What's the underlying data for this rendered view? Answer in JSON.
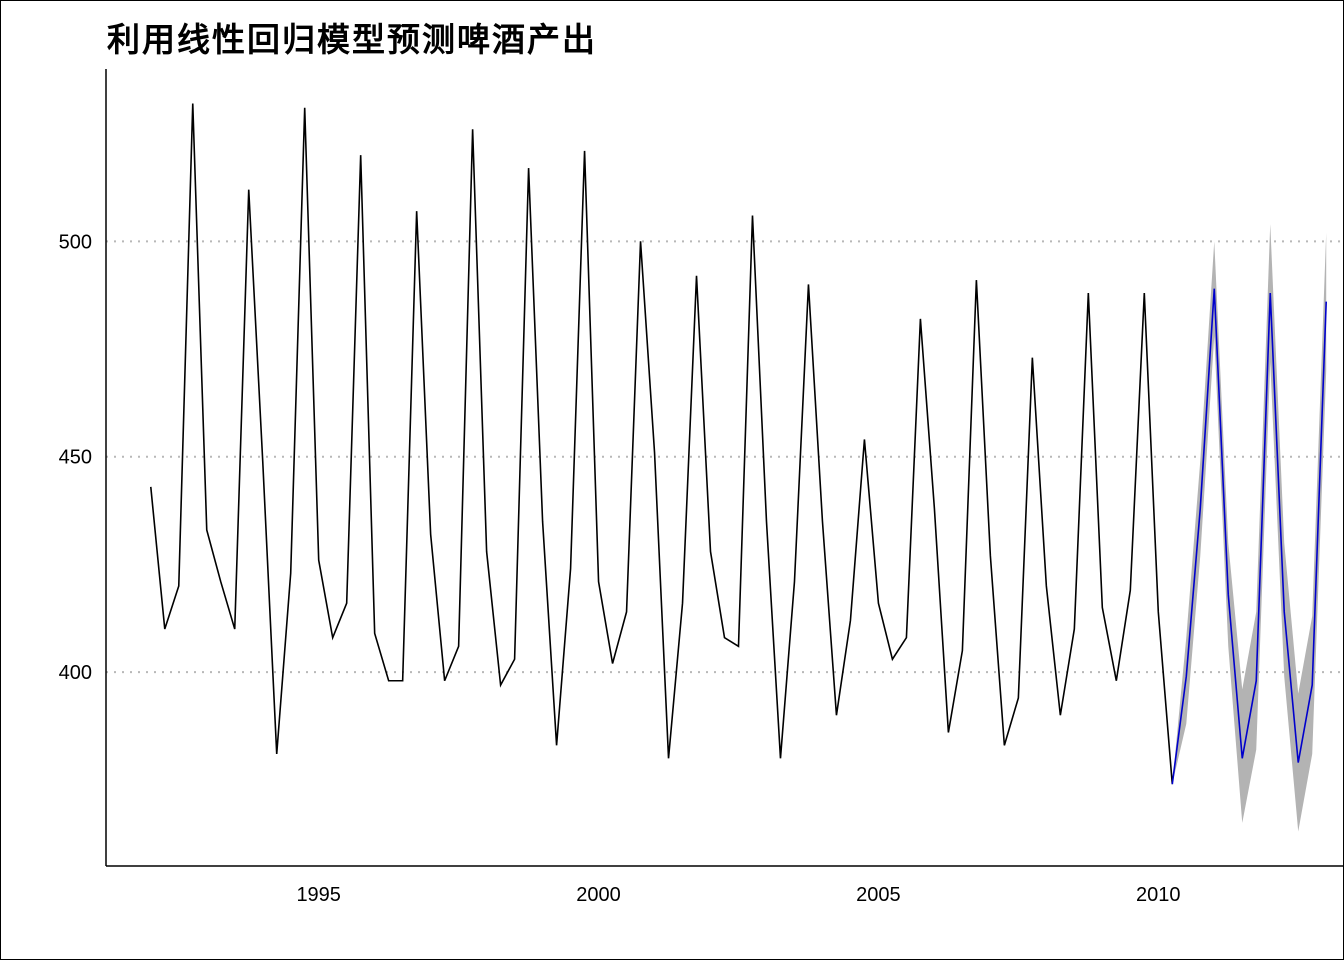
{
  "chart_data": {
    "type": "line",
    "title": "利用线性回归模型预测啤酒产出",
    "xlabel": "",
    "ylabel": "",
    "xlim": [
      1991.2,
      2013.3
    ],
    "ylim": [
      355,
      540
    ],
    "x_ticks": [
      "1995",
      "2000",
      "2005",
      "2010"
    ],
    "y_ticks": [
      "400",
      "450",
      "500"
    ],
    "grid": "horizontal dotted",
    "colors": {
      "observed": "#000000",
      "forecast": "#0000cc",
      "interval": "#b3b3b3"
    },
    "series": [
      {
        "kind": "observed",
        "x_start": 1992.0,
        "step": 0.25,
        "values": [
          443,
          410,
          420,
          532,
          433,
          421,
          410,
          512,
          449,
          381,
          423,
          531,
          426,
          408,
          416,
          520,
          409,
          398,
          398,
          507,
          432,
          398,
          406,
          526,
          428,
          397,
          403,
          517,
          435,
          383,
          424,
          521,
          421,
          402,
          414,
          500,
          451,
          380,
          416,
          492,
          428,
          408,
          406,
          506,
          435,
          380,
          421,
          490,
          435,
          390,
          412,
          454,
          416,
          403,
          408,
          482,
          438,
          386,
          405,
          491,
          427,
          383,
          394,
          473,
          420,
          390,
          410,
          488,
          415,
          398,
          419,
          488,
          414,
          374
        ]
      },
      {
        "kind": "forecast",
        "x_start": 2010.25,
        "step": 0.25,
        "values": [
          374,
          399,
          438,
          489,
          418,
          380,
          398,
          488,
          414,
          379,
          397,
          486
        ],
        "lower": [
          374,
          388,
          427,
          478,
          406,
          365,
          382,
          472,
          399,
          363,
          381,
          470
        ],
        "upper": [
          374,
          408,
          449,
          500,
          430,
          396,
          414,
          504,
          430,
          395,
          413,
          502
        ]
      }
    ]
  }
}
